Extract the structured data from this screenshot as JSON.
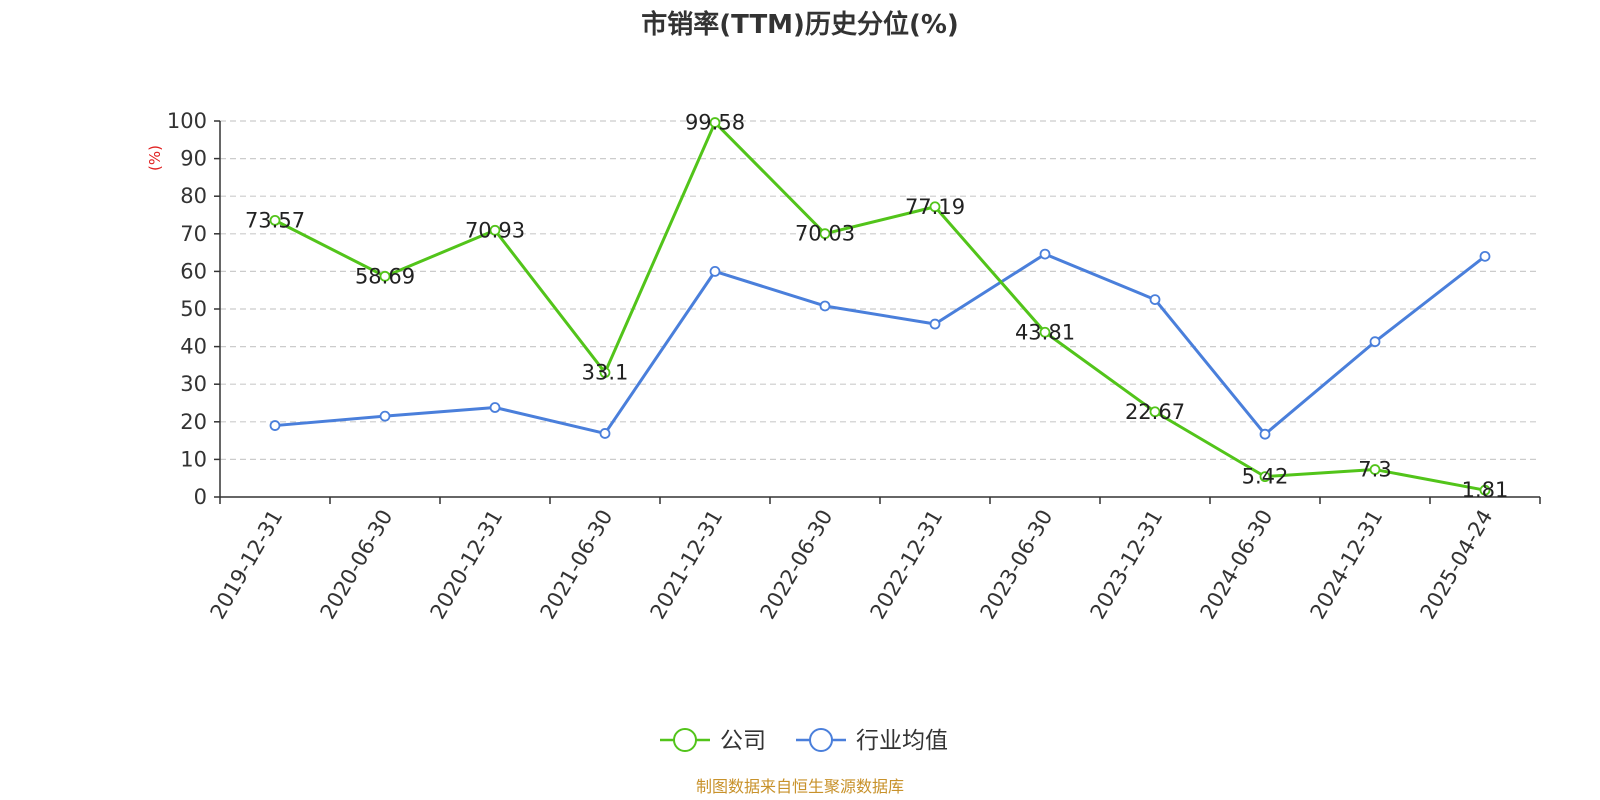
{
  "chart_data": {
    "type": "line",
    "title": "市销率(TTM)历史分位(%)",
    "ylabel": "(%)",
    "ylim": [
      0,
      100
    ],
    "yticks": [
      0,
      10,
      20,
      30,
      40,
      50,
      60,
      70,
      80,
      90,
      100
    ],
    "grid": true,
    "legend_position": "bottom-center",
    "categories": [
      "2019-12-31",
      "2020-06-30",
      "2020-12-31",
      "2021-06-30",
      "2021-12-31",
      "2022-06-30",
      "2022-12-31",
      "2023-06-30",
      "2023-12-31",
      "2024-06-30",
      "2024-12-31",
      "2025-04-24"
    ],
    "series": [
      {
        "name": "公司",
        "color": "#52c41a",
        "show_labels": true,
        "values": [
          73.57,
          58.69,
          70.93,
          33.1,
          99.58,
          70.03,
          77.19,
          43.81,
          22.67,
          5.42,
          7.3,
          1.81
        ]
      },
      {
        "name": "行业均值",
        "color": "#4a7fdb",
        "show_labels": false,
        "values": [
          19.0,
          21.5,
          23.8,
          16.9,
          60.0,
          50.8,
          46.0,
          64.6,
          52.5,
          16.7,
          41.3,
          64.0
        ]
      }
    ],
    "unit_color": "#e02020",
    "source": "制图数据来自恒生聚源数据库",
    "source_color": "#c8922b"
  }
}
